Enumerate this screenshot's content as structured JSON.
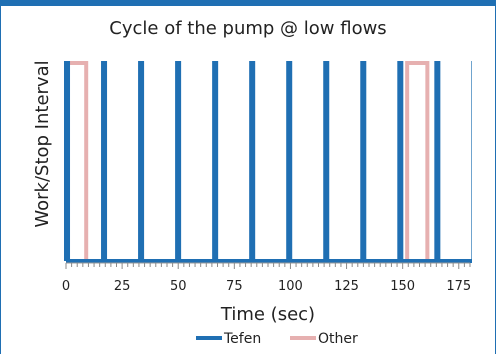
{
  "chart_data": {
    "type": "line",
    "title": "Cycle of the pump @ low flows",
    "xlabel": "Time (sec)",
    "ylabel": "Work/Stop Interval",
    "xlim": [
      0,
      180
    ],
    "ylim": [
      0,
      1
    ],
    "xticks": [
      0,
      25,
      50,
      75,
      100,
      125,
      150,
      175
    ],
    "grid": false,
    "legend": "bottom",
    "series": [
      {
        "name": "Tefen",
        "color": "#1f6fb3",
        "on_times": [
          0,
          16.5,
          33,
          49.5,
          66,
          82.5,
          99,
          115.5,
          132,
          148.5,
          165,
          181.5
        ]
      },
      {
        "name": "Other",
        "color": "#e6b0b0",
        "intervals": [
          [
            0,
            9
          ],
          [
            152,
            161
          ]
        ]
      }
    ]
  }
}
